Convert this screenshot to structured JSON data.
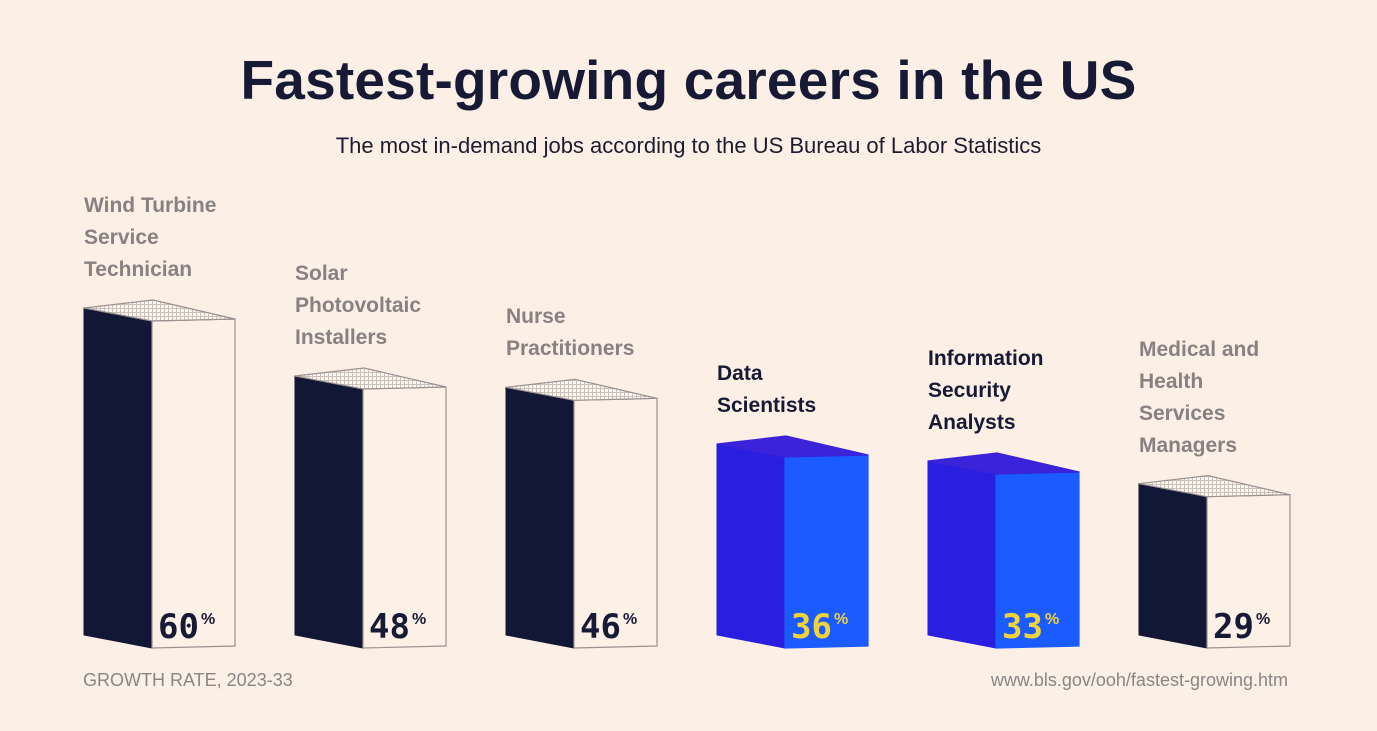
{
  "header": {
    "title": "Fastest-growing careers in the US",
    "subtitle": "The most in-demand jobs according to the US Bureau of Labor Statistics"
  },
  "footer": {
    "left": "GROWTH RATE, 2023-33",
    "right": "www.bls.gov/ooh/fastest-growing.htm"
  },
  "colors": {
    "background": "#fcefe5",
    "dark_face": "#121735",
    "light_face": "#fdf1e7",
    "highlight_front": "#1a5cff",
    "highlight_side": "#2a1ee0",
    "highlight_top": "#3a23d8",
    "highlight_value": "#f2d23a",
    "dark_value": "#161a35",
    "outline": "#9a9090"
  },
  "chart_data": {
    "type": "bar",
    "title": "Fastest-growing careers in the US",
    "subtitle": "The most in-demand jobs according to the US Bureau of Labor Statistics",
    "xlabel": "",
    "ylabel": "GROWTH RATE, 2023-33",
    "unit": "%",
    "categories": [
      "Wind Turbine Service Technician",
      "Solar Photovoltaic Installers",
      "Nurse Practitioners",
      "Data Scientists",
      "Information Security Analysts",
      "Medical and Health Services Managers"
    ],
    "label_lines": [
      "Wind Turbine\nService\nTechnician",
      "Solar\nPhotovoltaic\nInstallers",
      "Nurse\nPractitioners",
      "Data\nScientists",
      "Information\nSecurity\nAnalysts",
      "Medical and\nHealth\nServices\nManagers"
    ],
    "values": [
      60,
      48,
      46,
      36,
      33,
      29
    ],
    "highlighted": [
      false,
      false,
      false,
      true,
      true,
      false
    ],
    "ylim": [
      0,
      60
    ],
    "grid": false,
    "legend": "none",
    "source": "www.bls.gov/ooh/fastest-growing.htm"
  }
}
